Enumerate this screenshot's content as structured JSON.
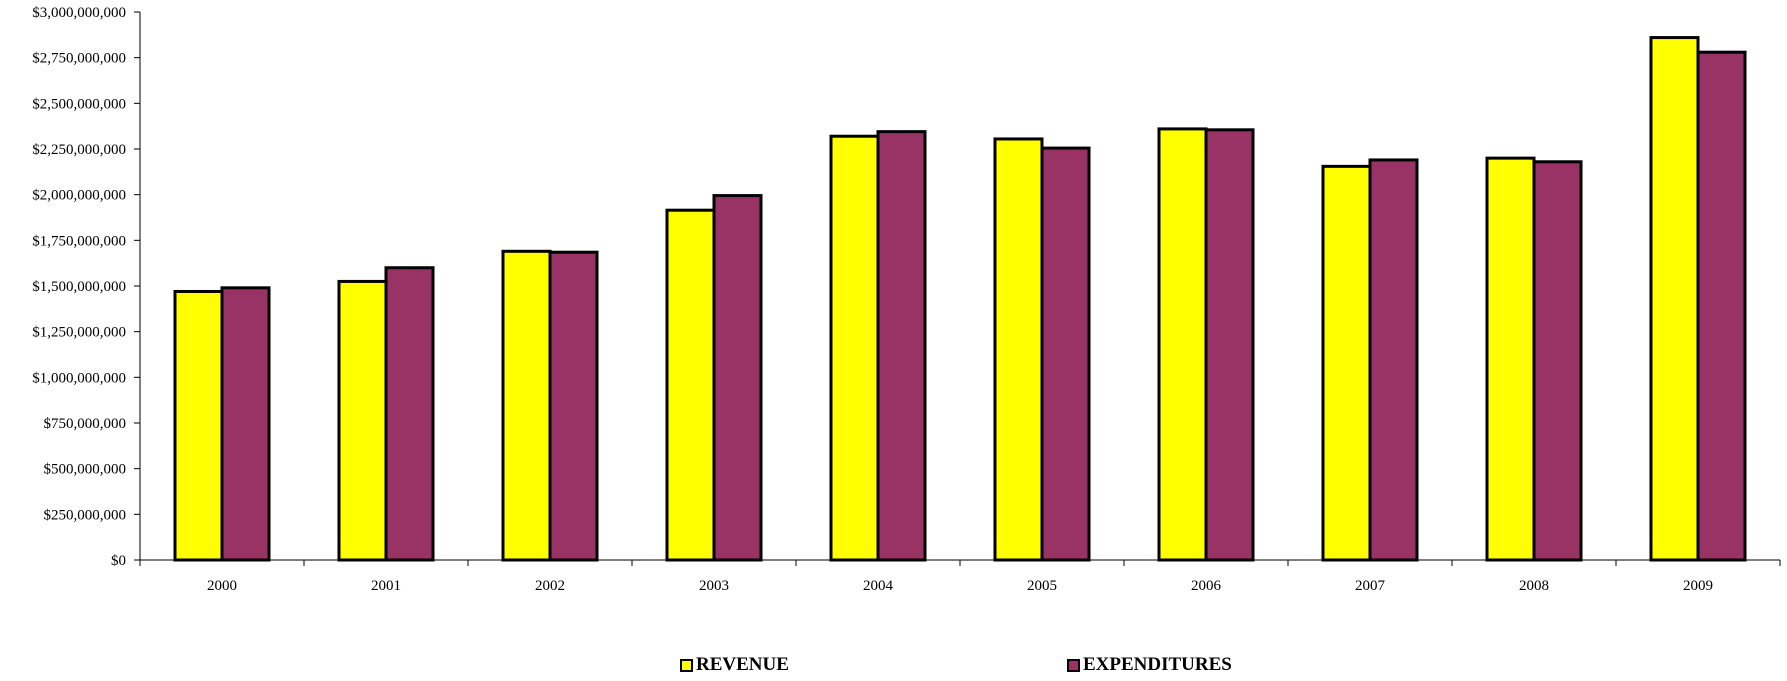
{
  "chart_data": {
    "type": "bar",
    "title": "",
    "xlabel": "",
    "ylabel": "",
    "categories": [
      "2000",
      "2001",
      "2002",
      "2003",
      "2004",
      "2005",
      "2006",
      "2007",
      "2008",
      "2009"
    ],
    "series": [
      {
        "name": "REVENUE",
        "color": "#ffff00",
        "values": [
          1470000000,
          1525000000,
          1690000000,
          1915000000,
          2320000000,
          2305000000,
          2360000000,
          2155000000,
          2200000000,
          2860000000
        ]
      },
      {
        "name": "EXPENDITURES",
        "color": "#993366",
        "values": [
          1490000000,
          1600000000,
          1685000000,
          1995000000,
          2345000000,
          2255000000,
          2355000000,
          2190000000,
          2180000000,
          2780000000
        ]
      }
    ],
    "ylim": [
      0,
      3000000000
    ],
    "yticks": [
      0,
      250000000,
      500000000,
      750000000,
      1000000000,
      1250000000,
      1500000000,
      1750000000,
      2000000000,
      2250000000,
      2500000000,
      2750000000,
      3000000000
    ],
    "ytick_labels": [
      "$0",
      "$250,000,000",
      "$500,000,000",
      "$750,000,000",
      "$1,000,000,000",
      "$1,250,000,000",
      "$1,500,000,000",
      "$1,750,000,000",
      "$2,000,000,000",
      "$2,250,000,000",
      "$2,500,000,000",
      "$2,750,000,000",
      "$3,000,000,000"
    ],
    "grid": false,
    "legend_position": "bottom"
  }
}
